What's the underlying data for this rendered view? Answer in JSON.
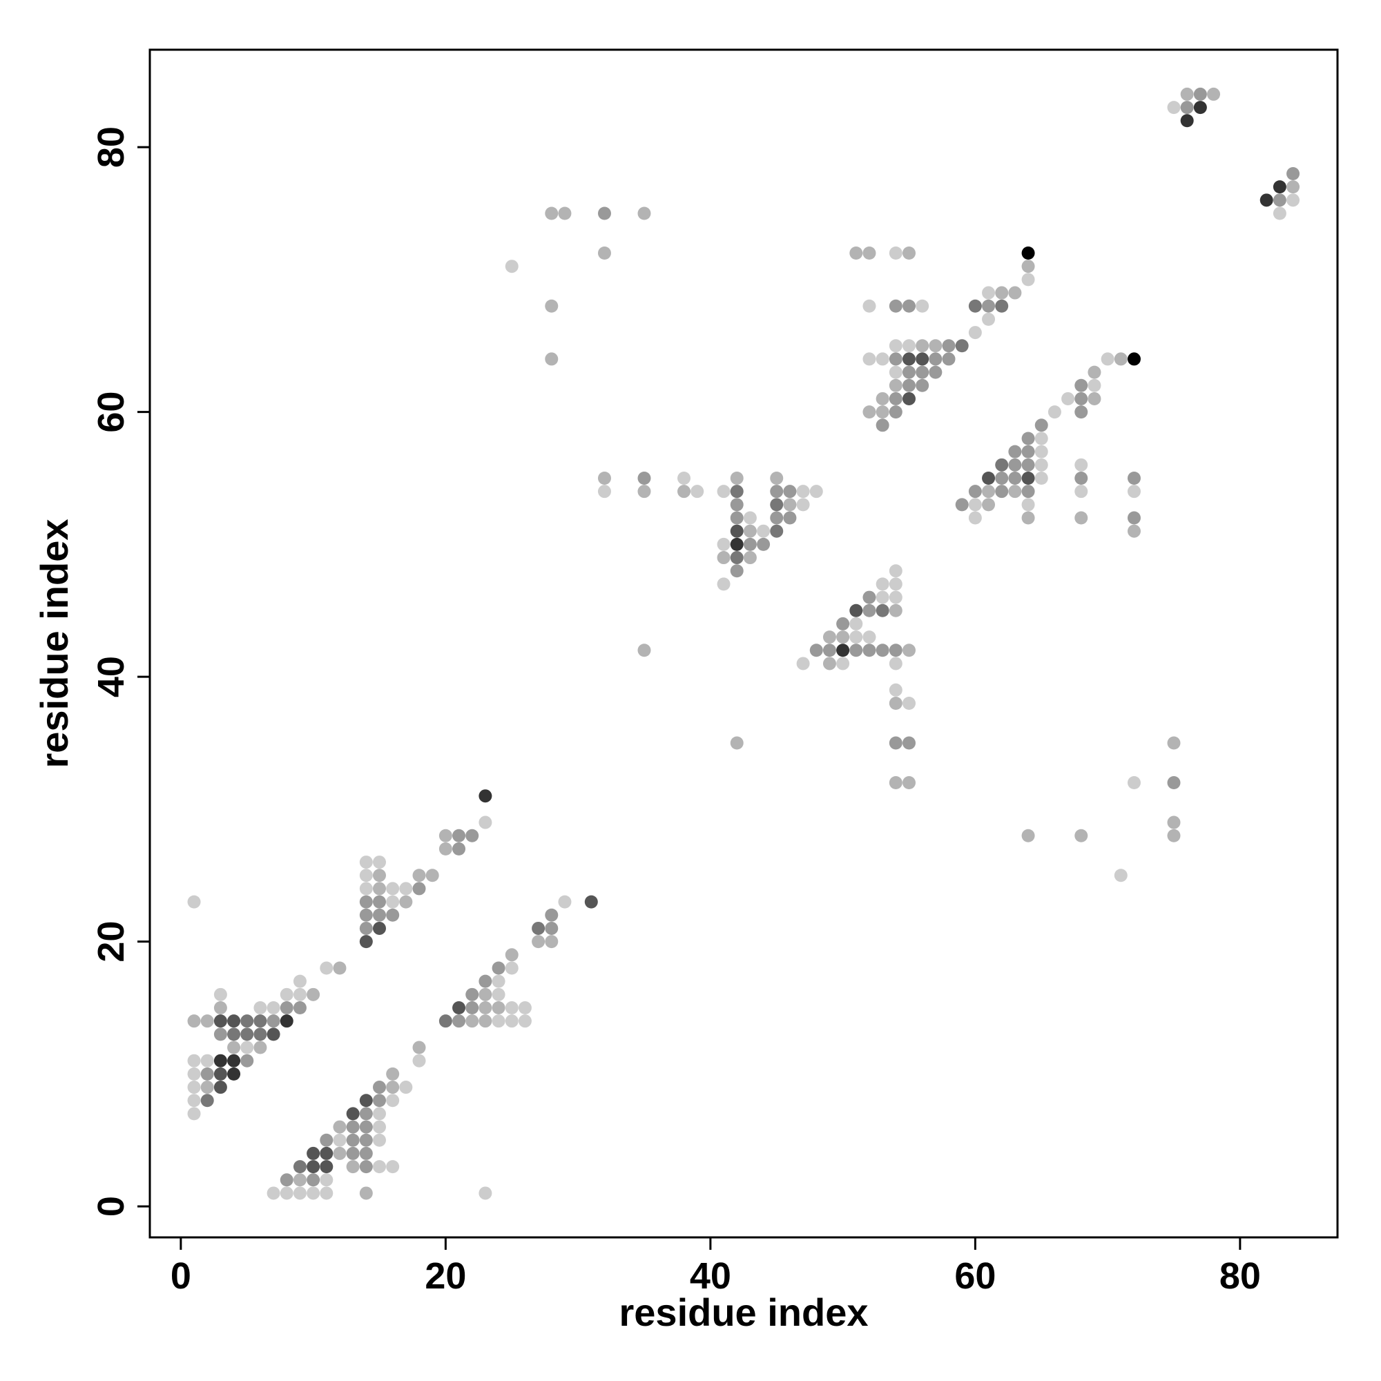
{
  "chart_data": {
    "type": "scatter",
    "x_label": "residue index",
    "y_label": "residue index",
    "xlim": [
      -2.34,
      87.36
    ],
    "ylim": [
      -2.34,
      87.36
    ],
    "xticks": [
      0,
      20,
      40,
      60,
      80
    ],
    "yticks": [
      0,
      20,
      40,
      60,
      80
    ],
    "grid": false,
    "series": [
      {
        "color": "#cccccc",
        "x": [
          7,
          8,
          9,
          10,
          11,
          23,
          11,
          15,
          16,
          12,
          15,
          15,
          15,
          16,
          17,
          18,
          24,
          25,
          26,
          25,
          26,
          24,
          24,
          25,
          29,
          1,
          1,
          1,
          1,
          1,
          2,
          5,
          6,
          7,
          3,
          8,
          9,
          9,
          11,
          16,
          14,
          16,
          17,
          14,
          14,
          15,
          1,
          23,
          25,
          32,
          38,
          39,
          41,
          47,
          48,
          47,
          43,
          44,
          41,
          41,
          54,
          53,
          54,
          53,
          54,
          51,
          51,
          52,
          47,
          50,
          54,
          54,
          55,
          54,
          64,
          61,
          52,
          56,
          61,
          60,
          54,
          55,
          52,
          53,
          54,
          70,
          69,
          67,
          66,
          65,
          65,
          65,
          68,
          65,
          68,
          72,
          60,
          64,
          60,
          72,
          71,
          84,
          83,
          75
        ],
        "values": [
          1,
          1,
          1,
          1,
          1,
          1,
          2,
          3,
          3,
          5,
          5,
          6,
          7,
          8,
          9,
          11,
          14,
          14,
          14,
          15,
          15,
          16,
          17,
          18,
          23,
          7,
          8,
          9,
          10,
          11,
          11,
          12,
          15,
          15,
          16,
          16,
          16,
          17,
          18,
          23,
          24,
          24,
          24,
          25,
          26,
          26,
          23,
          29,
          71,
          54,
          55,
          54,
          54,
          54,
          54,
          53,
          52,
          51,
          50,
          47,
          48,
          47,
          47,
          46,
          46,
          44,
          43,
          43,
          41,
          41,
          41,
          39,
          38,
          72,
          70,
          69,
          68,
          68,
          67,
          66,
          65,
          65,
          64,
          64,
          63,
          64,
          62,
          61,
          60,
          58,
          57,
          56,
          56,
          55,
          54,
          54,
          53,
          53,
          52,
          32,
          25,
          76,
          75,
          83
        ]
      },
      {
        "color": "#b3b3b3",
        "x": [
          14,
          9,
          13,
          12,
          12,
          16,
          16,
          18,
          22,
          23,
          23,
          24,
          23,
          25,
          27,
          28,
          2,
          4,
          6,
          1,
          2,
          3,
          10,
          12,
          17,
          15,
          15,
          18,
          19,
          20,
          20,
          28,
          29,
          35,
          32,
          28,
          28,
          32,
          42,
          45,
          35,
          38,
          46,
          43,
          41,
          43,
          35,
          42,
          54,
          49,
          50,
          55,
          49,
          54,
          54,
          55,
          51,
          52,
          55,
          64,
          62,
          63,
          56,
          57,
          54,
          53,
          52,
          53,
          71,
          69,
          69,
          61,
          63,
          61,
          64,
          68,
          72,
          75,
          75,
          64,
          68,
          75,
          76,
          78,
          84
        ],
        "values": [
          1,
          2,
          3,
          4,
          6,
          9,
          10,
          12,
          14,
          14,
          15,
          15,
          16,
          19,
          20,
          20,
          9,
          12,
          12,
          14,
          14,
          15,
          16,
          18,
          23,
          24,
          25,
          25,
          25,
          27,
          28,
          75,
          75,
          75,
          72,
          68,
          64,
          55,
          55,
          55,
          54,
          54,
          53,
          51,
          49,
          49,
          42,
          35,
          45,
          43,
          43,
          42,
          41,
          38,
          32,
          32,
          72,
          72,
          72,
          71,
          69,
          69,
          65,
          65,
          62,
          61,
          60,
          60,
          64,
          63,
          61,
          54,
          54,
          53,
          52,
          52,
          51,
          35,
          29,
          28,
          28,
          28,
          84,
          84,
          77
        ]
      },
      {
        "color": "#999999",
        "x": [
          8,
          10,
          14,
          13,
          14,
          11,
          13,
          14,
          13,
          14,
          14,
          15,
          15,
          21,
          22,
          22,
          23,
          24,
          28,
          28,
          2,
          5,
          3,
          7,
          8,
          9,
          14,
          14,
          15,
          16,
          14,
          15,
          18,
          21,
          21,
          22,
          32,
          35,
          45,
          46,
          42,
          42,
          45,
          46,
          43,
          44,
          42,
          52,
          52,
          50,
          48,
          49,
          51,
          52,
          53,
          54,
          54,
          55,
          54,
          55,
          61,
          58,
          54,
          57,
          58,
          55,
          56,
          57,
          55,
          56,
          54,
          54,
          53,
          68,
          68,
          68,
          65,
          64,
          63,
          64,
          63,
          64,
          62,
          63,
          68,
          72,
          60,
          62,
          64,
          59,
          72,
          75,
          77,
          76,
          84,
          83
        ],
        "values": [
          2,
          2,
          3,
          4,
          4,
          5,
          5,
          5,
          6,
          6,
          7,
          8,
          9,
          14,
          15,
          16,
          17,
          18,
          21,
          22,
          10,
          11,
          13,
          14,
          15,
          15,
          21,
          22,
          22,
          22,
          23,
          23,
          24,
          27,
          28,
          28,
          75,
          55,
          54,
          54,
          53,
          52,
          52,
          52,
          50,
          50,
          48,
          46,
          45,
          44,
          42,
          42,
          42,
          42,
          42,
          42,
          35,
          35,
          68,
          68,
          68,
          65,
          64,
          64,
          64,
          63,
          63,
          63,
          62,
          62,
          61,
          60,
          59,
          62,
          61,
          60,
          59,
          58,
          57,
          57,
          56,
          56,
          55,
          55,
          55,
          55,
          54,
          54,
          54,
          53,
          52,
          32,
          84,
          83,
          78,
          76
        ]
      },
      {
        "color": "#777777",
        "x": [
          9,
          20,
          27,
          2,
          4,
          5,
          6,
          5,
          6,
          42,
          45,
          45,
          42,
          53,
          59,
          60,
          62,
          62
        ],
        "values": [
          3,
          14,
          21,
          8,
          13,
          13,
          13,
          14,
          14,
          54,
          53,
          51,
          49,
          45,
          65,
          68,
          68,
          56
        ]
      },
      {
        "color": "#555555",
        "x": [
          10,
          11,
          10,
          11,
          13,
          14,
          21,
          31,
          3,
          3,
          7,
          3,
          4,
          14,
          15,
          42,
          51,
          55,
          56,
          55,
          61,
          64
        ],
        "values": [
          3,
          3,
          4,
          4,
          7,
          8,
          15,
          23,
          9,
          10,
          13,
          14,
          14,
          20,
          21,
          51,
          45,
          64,
          64,
          61,
          55,
          55
        ]
      },
      {
        "color": "#333333",
        "x": [
          4,
          3,
          4,
          8,
          23,
          42,
          50,
          77,
          76,
          83,
          82
        ],
        "values": [
          10,
          11,
          11,
          14,
          31,
          50,
          42,
          83,
          82,
          77,
          76
        ]
      },
      {
        "color": "#000000",
        "x": [
          64,
          72
        ],
        "values": [
          72,
          64
        ]
      }
    ]
  }
}
